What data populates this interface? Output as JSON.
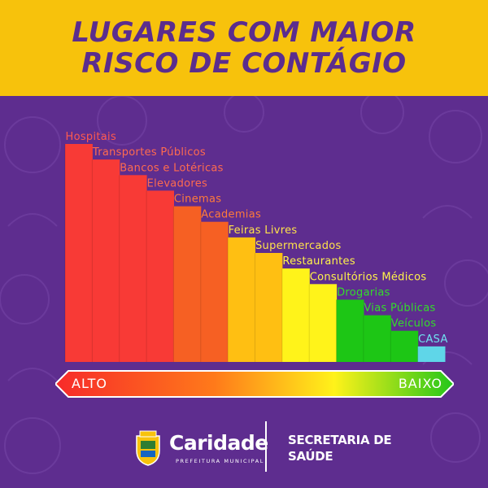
{
  "header": {
    "title_line1": "LUGARES COM MAIOR",
    "title_line2": "RISCO DE CONTÁGIO"
  },
  "chart_data": {
    "type": "bar",
    "title": "LUGARES COM MAIOR RISCO DE CONTÁGIO",
    "categories": [
      "Hospitais",
      "Transportes Públicos",
      "Bancos e Lotéricas",
      "Elevadores",
      "Cinemas",
      "Academias",
      "Feiras Livres",
      "Supermercados",
      "Restaurantes",
      "Consultórios Médicos",
      "Drogarias",
      "Vias Públicas",
      "Veículos",
      "CASA"
    ],
    "values": [
      14,
      13,
      12,
      11,
      10,
      9,
      8,
      7,
      6,
      5,
      4,
      3,
      2,
      1
    ],
    "colors": [
      "#f83a36",
      "#f83a36",
      "#f83a36",
      "#f83a36",
      "#f66023",
      "#f66023",
      "#ffbf12",
      "#ffbf12",
      "#fff31a",
      "#fff31a",
      "#1dc615",
      "#1dc615",
      "#1dc615",
      "#5fd6e8"
    ],
    "label_colors": [
      "#ff5a4e",
      "#ff6b4f",
      "#ff6b4f",
      "#ff6b4f",
      "#ff7a3a",
      "#ff7a3a",
      "#ffe24a",
      "#ffe24a",
      "#fff34a",
      "#fff34a",
      "#33dd2a",
      "#33dd2a",
      "#33dd2a",
      "#6fe0f0"
    ],
    "grid": false,
    "legend": "none"
  },
  "scale": {
    "high_label": "ALTO",
    "low_label": "BAIXO",
    "gradient": [
      "#f72a2a",
      "#ff7a1a",
      "#fff21a",
      "#22c61a"
    ]
  },
  "footer": {
    "org_name": "Caridade",
    "org_sub": "PREFEITURA MUNICIPAL",
    "dept_line1": "SECRETARIA DE",
    "dept_line2": "SAÚDE"
  },
  "colors": {
    "background": "#5e2d8f",
    "header": "#f7c20c",
    "title": "#5b2d8e"
  }
}
